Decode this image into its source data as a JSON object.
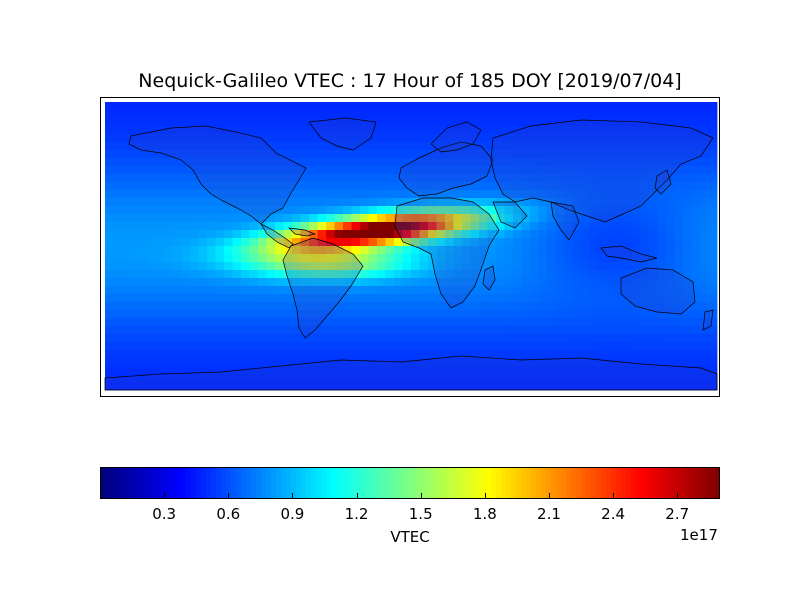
{
  "title": "Nequick-Galileo VTEC : 17 Hour of 185 DOY [2019/07/04]",
  "colorbar": {
    "label": "VTEC",
    "exponent": "1e17",
    "ticks": [
      "0.3",
      "0.6",
      "0.9",
      "1.2",
      "1.5",
      "1.8",
      "2.1",
      "2.4",
      "2.7"
    ],
    "range": [
      0,
      2.9
    ],
    "colormap": "jet"
  },
  "map": {
    "projection": "equirectangular",
    "lon_range": [
      -180,
      180
    ],
    "lat_range": [
      -90,
      90
    ],
    "variable": "VTEC",
    "peak_region": "tropical Atlantic / West Africa"
  }
}
